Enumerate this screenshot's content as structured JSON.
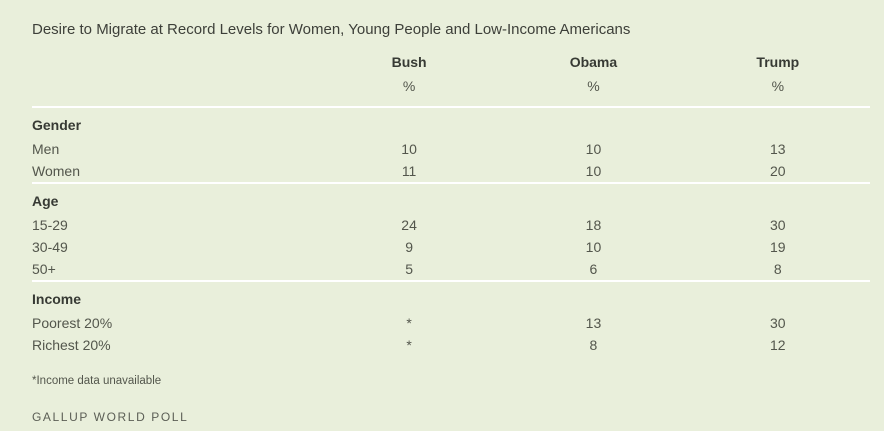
{
  "colors": {
    "background": "#e9efdb",
    "rule": "#ffffff",
    "heading_text": "#373a34",
    "body_text": "#53564c"
  },
  "chart_data": {
    "type": "table",
    "title": "Desire to Migrate at Record Levels for Women, Young People and Low-Income Americans",
    "columns": [
      "Bush",
      "Obama",
      "Trump"
    ],
    "unit": "%",
    "sections": [
      {
        "header": "Gender",
        "rows": [
          {
            "label": "Men",
            "values": [
              "10",
              "10",
              "13"
            ]
          },
          {
            "label": "Women",
            "values": [
              "11",
              "10",
              "20"
            ]
          }
        ]
      },
      {
        "header": "Age",
        "rows": [
          {
            "label": "15-29",
            "values": [
              "24",
              "18",
              "30"
            ]
          },
          {
            "label": "30-49",
            "values": [
              "9",
              "10",
              "19"
            ]
          },
          {
            "label": "50+",
            "values": [
              "5",
              "6",
              "8"
            ]
          }
        ]
      },
      {
        "header": "Income",
        "rows": [
          {
            "label": "Poorest 20%",
            "values": [
              "*",
              "13",
              "30"
            ]
          },
          {
            "label": "Richest 20%",
            "values": [
              "*",
              "8",
              "12"
            ]
          }
        ]
      }
    ],
    "footnote": "*Income data unavailable",
    "source": "GALLUP WORLD POLL"
  }
}
